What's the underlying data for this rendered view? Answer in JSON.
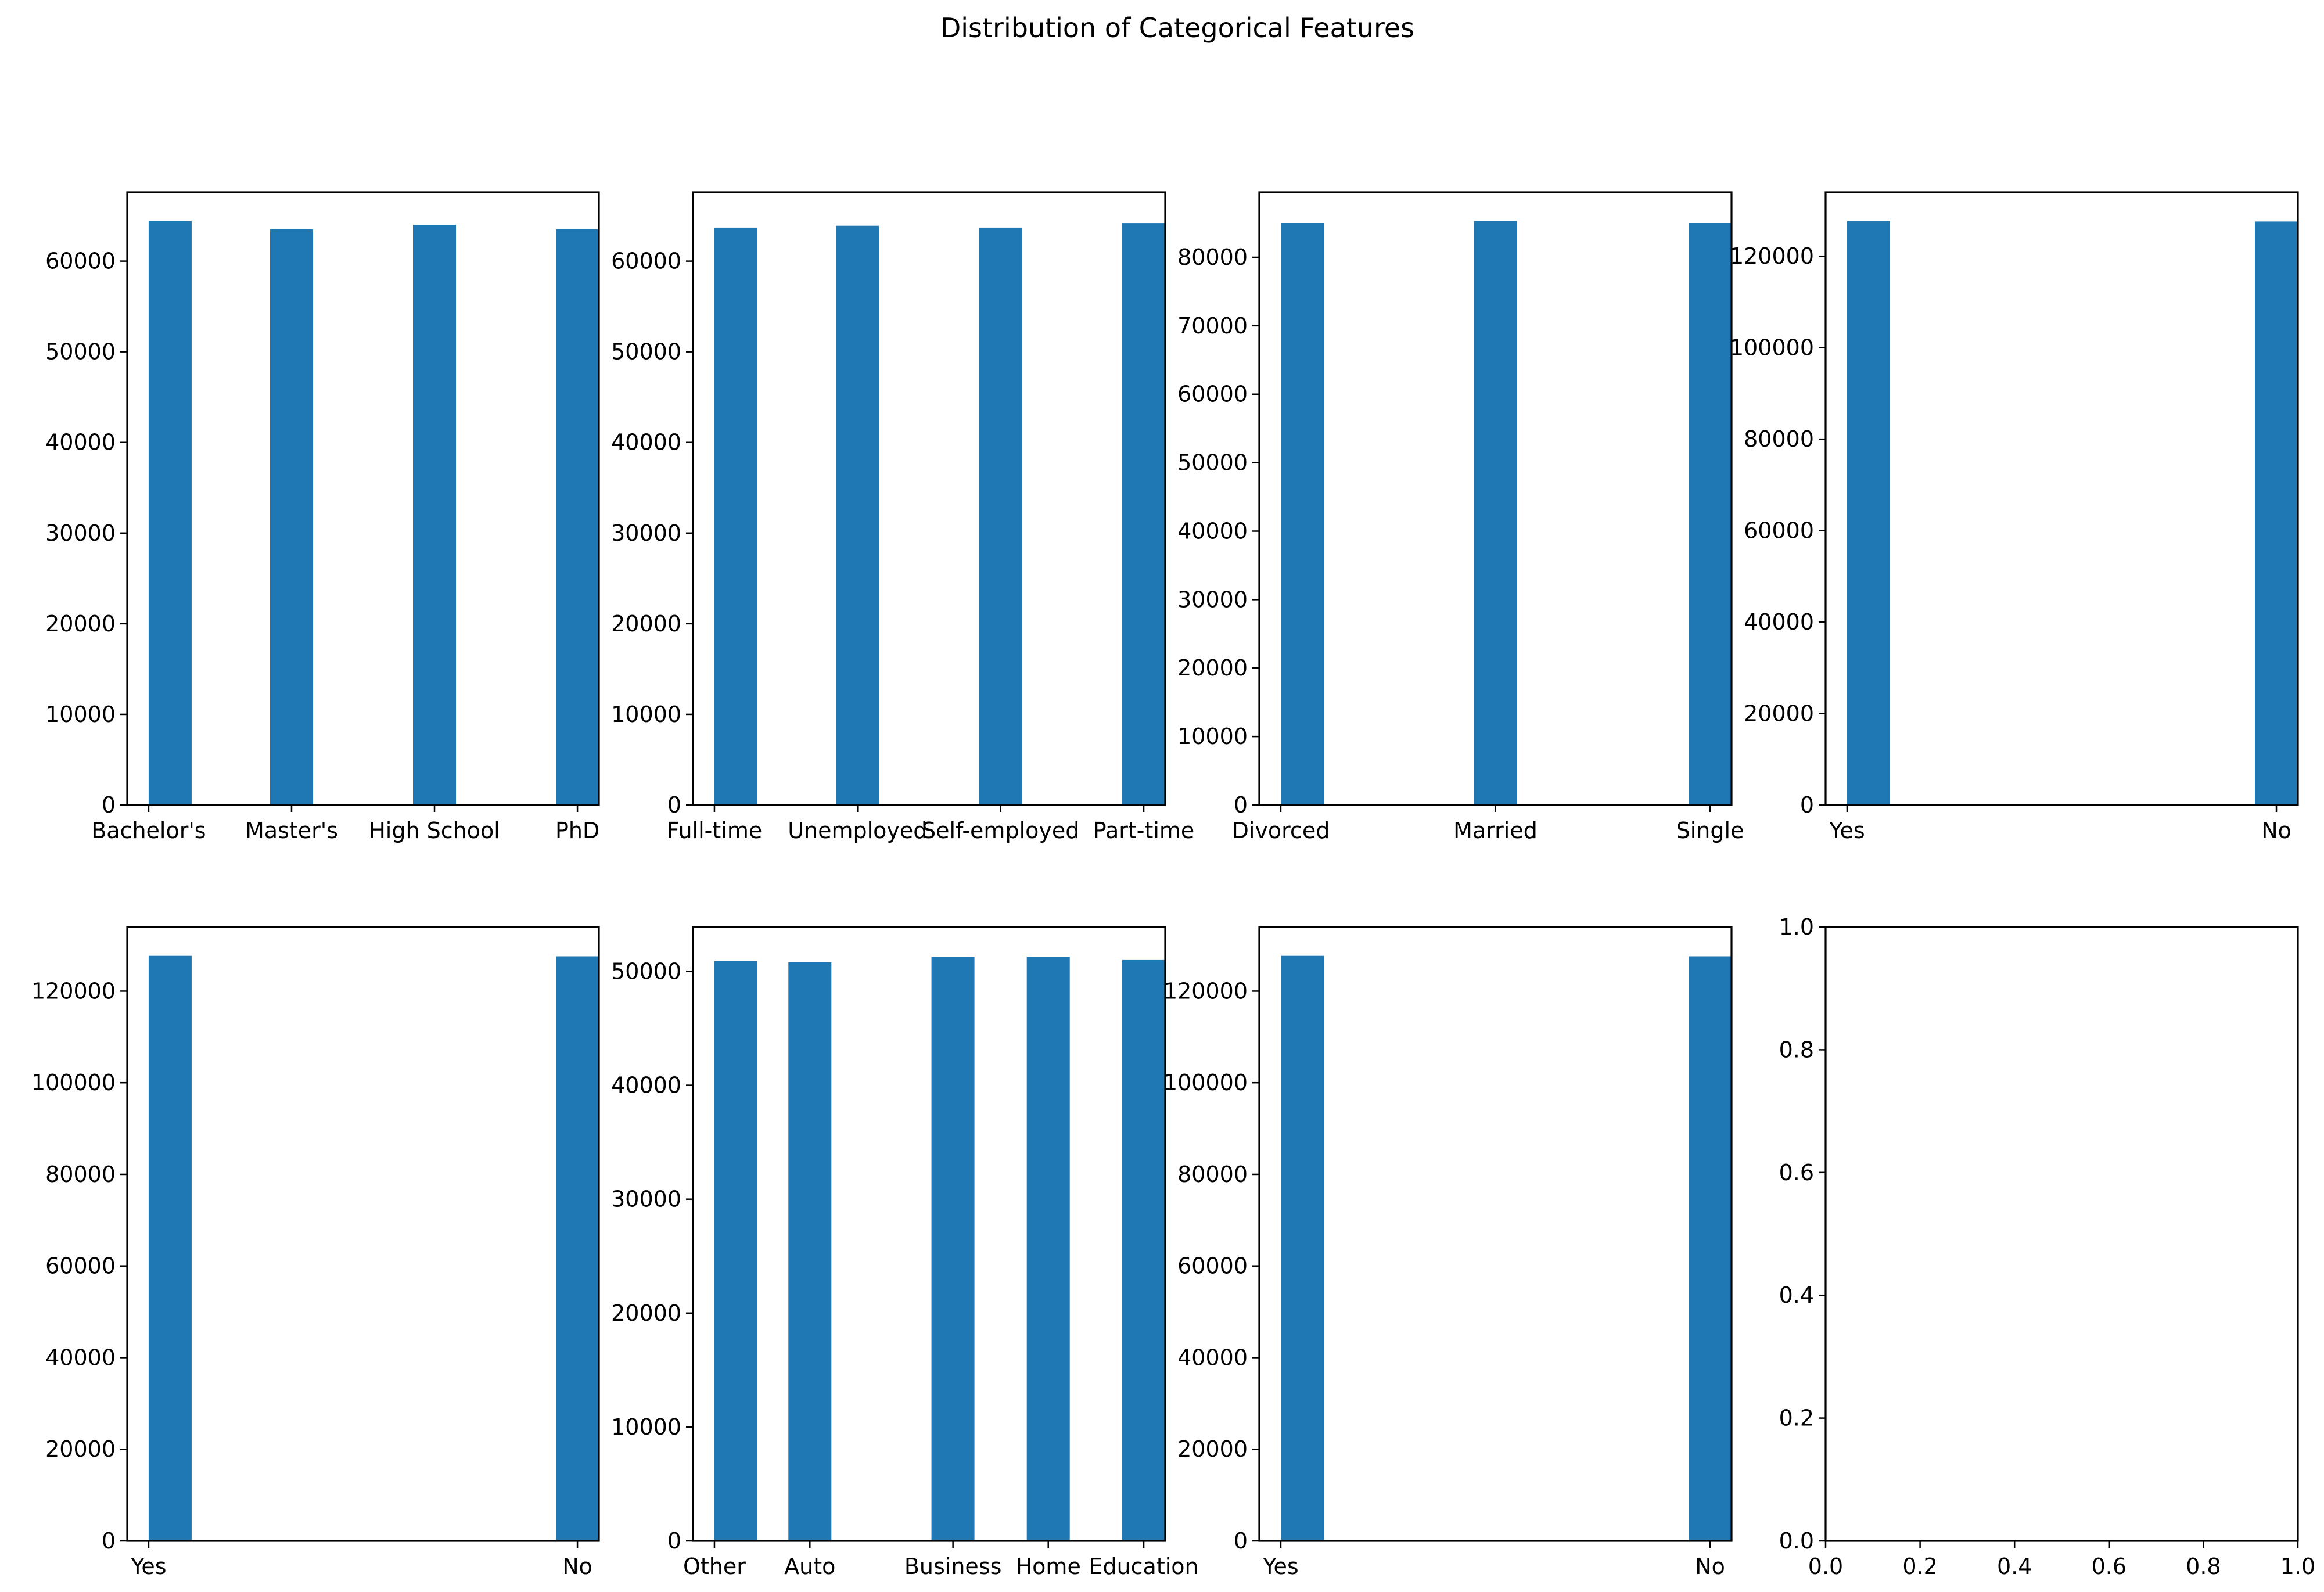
{
  "figure": {
    "title": "Distribution of Categorical Features"
  },
  "colors": {
    "bar": "#1f77b4",
    "axis": "#000000",
    "background": "#ffffff"
  },
  "chart_data": [
    {
      "type": "bar",
      "title": "",
      "xlabel": "",
      "ylabel": "",
      "categories": [
        "Bachelor's",
        "Master's",
        "High School",
        "PhD"
      ],
      "x": [
        0,
        1,
        2,
        3
      ],
      "values": [
        64400,
        63500,
        64000,
        63500
      ],
      "xlim": [
        -0.15,
        3.15
      ],
      "ylim": [
        0,
        67600
      ],
      "yticks": [
        0,
        10000,
        20000,
        30000,
        40000,
        50000,
        60000
      ],
      "grid": false
    },
    {
      "type": "bar",
      "title": "",
      "xlabel": "",
      "ylabel": "",
      "categories": [
        "Full-time",
        "Unemployed",
        "Self-employed",
        "Part-time"
      ],
      "x": [
        0,
        1,
        2,
        3
      ],
      "values": [
        63700,
        63900,
        63700,
        64200
      ],
      "xlim": [
        -0.15,
        3.15
      ],
      "ylim": [
        0,
        67600
      ],
      "yticks": [
        0,
        10000,
        20000,
        30000,
        40000,
        50000,
        60000
      ],
      "grid": false
    },
    {
      "type": "bar",
      "title": "",
      "xlabel": "",
      "ylabel": "",
      "categories": [
        "Divorced",
        "Married",
        "Single"
      ],
      "x": [
        0,
        1,
        2
      ],
      "values": [
        85000,
        85300,
        85000
      ],
      "xlim": [
        -0.1,
        2.1
      ],
      "ylim": [
        0,
        89500
      ],
      "yticks": [
        0,
        10000,
        20000,
        30000,
        40000,
        50000,
        60000,
        70000,
        80000
      ],
      "grid": false
    },
    {
      "type": "bar",
      "title": "",
      "xlabel": "",
      "ylabel": "",
      "categories": [
        "Yes",
        "No"
      ],
      "x": [
        0,
        1
      ],
      "values": [
        127700,
        127600
      ],
      "xlim": [
        -0.05,
        1.05
      ],
      "ylim": [
        0,
        134000
      ],
      "yticks": [
        0,
        20000,
        40000,
        60000,
        80000,
        100000,
        120000
      ],
      "grid": false
    },
    {
      "type": "bar",
      "title": "",
      "xlabel": "",
      "ylabel": "",
      "categories": [
        "Yes",
        "No"
      ],
      "x": [
        0,
        1
      ],
      "values": [
        127700,
        127600
      ],
      "xlim": [
        -0.05,
        1.05
      ],
      "ylim": [
        0,
        134000
      ],
      "yticks": [
        0,
        20000,
        40000,
        60000,
        80000,
        100000,
        120000
      ],
      "grid": false
    },
    {
      "type": "bar",
      "title": "",
      "xlabel": "",
      "ylabel": "",
      "categories": [
        "Other",
        "Auto",
        "Business",
        "Home",
        "Education"
      ],
      "x": [
        0,
        0.667,
        1.667,
        2.333,
        3
      ],
      "values": [
        50900,
        50800,
        51300,
        51300,
        51000
      ],
      "xlim": [
        -0.15,
        3.15
      ],
      "ylim": [
        0,
        53900
      ],
      "yticks": [
        0,
        10000,
        20000,
        30000,
        40000,
        50000
      ],
      "grid": false
    },
    {
      "type": "bar",
      "title": "",
      "xlabel": "",
      "ylabel": "",
      "categories": [
        "Yes",
        "No"
      ],
      "x": [
        0,
        1
      ],
      "values": [
        127700,
        127600
      ],
      "xlim": [
        -0.05,
        1.05
      ],
      "ylim": [
        0,
        134000
      ],
      "yticks": [
        0,
        20000,
        40000,
        60000,
        80000,
        100000,
        120000
      ],
      "grid": false
    },
    {
      "type": "empty",
      "title": "",
      "categories": [],
      "values": [],
      "xlim": [
        0,
        1
      ],
      "ylim": [
        0,
        1
      ],
      "xticks": [
        "0.0",
        "0.2",
        "0.4",
        "0.6",
        "0.8",
        "1.0"
      ],
      "yticks": [
        "0.0",
        "0.2",
        "0.4",
        "0.6",
        "0.8",
        "1.0"
      ],
      "grid": false
    }
  ]
}
